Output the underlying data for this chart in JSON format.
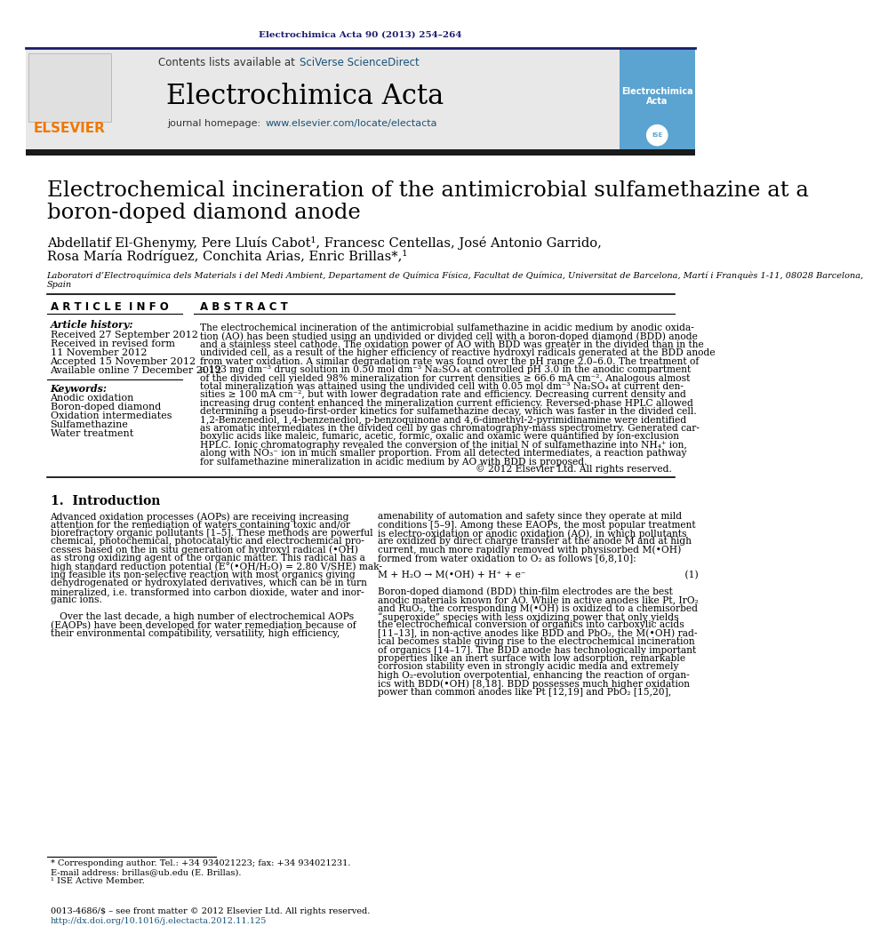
{
  "journal_ref": "Electrochimica Acta 90 (2013) 254–264",
  "journal_name": "Electrochimica Acta",
  "journal_url": "www.elsevier.com/locate/electacta",
  "contents_text": "Contents lists available at SciVerse ScienceDirect",
  "paper_title": "Electrochemical incineration of the antimicrobial sulfamethazine at a\nboron-doped diamond anode",
  "authors_line1": "Abdellatif El-Ghenymy, Pere Lluís Cabot¹, Francesc Centellas, José Antonio Garrido,",
  "authors_line2": "Rosa María Rodríguez, Conchita Arias, Enric Brillas*,¹",
  "affiliation": "Laboratori d’Electroquímica dels Materials i del Medi Ambient, Departament de Química Física, Facultat de Química, Universitat de Barcelona, Martí i Franquès 1-11, 08028 Barcelona,",
  "affiliation2": "Spain",
  "article_history_label": "Article history:",
  "received1": "Received 27 September 2012",
  "received2": "Received in revised form",
  "received2b": "11 November 2012",
  "accepted": "Accepted 15 November 2012",
  "available": "Available online 7 December 2012",
  "keywords_label": "Keywords:",
  "keywords": [
    "Anodic oxidation",
    "Boron-doped diamond",
    "Oxidation intermediates",
    "Sulfamethazine",
    "Water treatment"
  ],
  "abstract_label": "ABSTRACT",
  "article_info_label": "ARTICLE INFO",
  "abstract_text": "The electrochemical incineration of the antimicrobial sulfamethazine in acidic medium by anodic oxida-\ntion (AO) has been studied using an undivided or divided cell with a boron-doped diamond (BDD) anode\nand a stainless steel cathode. The oxidation power of AO with BDD was greater in the divided than in the\nundivided cell, as a result of the higher efficiency of reactive hydroxyl radicals generated at the BDD anode\nfrom water oxidation. A similar degradation rate was found over the pH range 2.0–6.0. The treatment of\na 193 mg dm⁻³ drug solution in 0.50 mol dm⁻³ Na₂SO₄ at controlled pH 3.0 in the anodic compartment\nof the divided cell yielded 98% mineralization for current densities ≥ 66.6 mA cm⁻². Analogous almost\ntotal mineralization was attained using the undivided cell with 0.05 mol dm⁻³ Na₂SO₄ at current den-\nsities ≥ 100 mA cm⁻², but with lower degradation rate and efficiency. Decreasing current density and\nincreasing drug content enhanced the mineralization current efficiency. Reversed-phase HPLC allowed\ndetermining a pseudo-first-order kinetics for sulfamethazine decay, which was faster in the divided cell.\n1,2-Benzenediol, 1,4-benzenediol, p-benzoquinone and 4,6-dimethyl-2-pyrimidinamine were identified\nas aromatic intermediates in the divided cell by gas chromatography-mass spectrometry. Generated car-\nboxylic acids like maleic, fumaric, acetic, formic, oxalic and oxamic were quantified by ion-exclusion\nHPLC. Ionic chromatography revealed the conversion of the initial N of sulfamethazine into NH₄⁺ ion,\nalong with NO₃⁻ ion in much smaller proportion. From all detected intermediates, a reaction pathway\nfor sulfamethazine mineralization in acidic medium by AO with BDD is proposed.",
  "copyright": "© 2012 Elsevier Ltd. All rights reserved.",
  "section1_title": "1.  Introduction",
  "intro_col1": [
    "Advanced oxidation processes (AOPs) are receiving increasing",
    "attention for the remediation of waters containing toxic and/or",
    "biorefractory organic pollutants [1–5]. These methods are powerful",
    "chemical, photochemical, photocatalytic and electrochemical pro-",
    "cesses based on the in situ generation of hydroxyl radical (•OH)",
    "as strong oxidizing agent of the organic matter. This radical has a",
    "high standard reduction potential (E°(•OH/H₂O) = 2.80 V/SHE) mak-",
    "ing feasible its non-selective reaction with most organics giving",
    "dehydrogenated or hydroxylated derivatives, which can be in turn",
    "mineralized, i.e. transformed into carbon dioxide, water and inor-",
    "ganic ions.",
    "",
    "   Over the last decade, a high number of electrochemical AOPs",
    "(EAOPs) have been developed for water remediation because of",
    "their environmental compatibility, versatility, high efficiency,"
  ],
  "intro_col2": [
    "amenability of automation and safety since they operate at mild",
    "conditions [5–9]. Among these EAOPs, the most popular treatment",
    "is electro-oxidation or anodic oxidation (AO), in which pollutants",
    "are oxidized by direct charge transfer at the anode M and at high",
    "current, much more rapidly removed with physisorbed M(•OH)",
    "formed from water oxidation to O₂ as follows [6,8,10]:",
    "",
    "M + H₂O → M(•OH) + H⁺ + e⁻                                                     (1)",
    "",
    "Boron-doped diamond (BDD) thin-film electrodes are the best",
    "anodic materials known for AO. While in active anodes like Pt, IrO₂",
    "and RuO₂, the corresponding M(•OH) is oxidized to a chemisorbed",
    "“superoxide” species with less oxidizing power that only yields",
    "the electrochemical conversion of organics into carboxylic acids",
    "[11–13], in non-active anodes like BDD and PbO₂, the M(•OH) rad-",
    "ical becomes stable giving rise to the electrochemical incineration",
    "of organics [14–17]. The BDD anode has technologically important",
    "properties like an inert surface with low adsorption, remarkable",
    "corrosion stability even in strongly acidic media and extremely",
    "high O₂-evolution overpotential, enhancing the reaction of organ-",
    "ics with BDD(•OH) [8,18]. BDD possesses much higher oxidation",
    "power than common anodes like Pt [12,19] and PbO₂ [15,20],"
  ],
  "footnote1": "* Corresponding author. Tel.: +34 934021223; fax: +34 934021231.",
  "footnote2": "E-mail address: brillas@ub.edu (E. Brillas).",
  "footnote3": "¹ ISE Active Member.",
  "issn": "0013-4686/$ – see front matter © 2012 Elsevier Ltd. All rights reserved.",
  "doi": "http://dx.doi.org/10.1016/j.electacta.2012.11.125",
  "bg_color": "#ffffff",
  "header_bar_color": "#1a1a6e",
  "elsevier_orange": "#f07800",
  "link_color": "#1a5276",
  "dark_blue": "#1a1a6e"
}
